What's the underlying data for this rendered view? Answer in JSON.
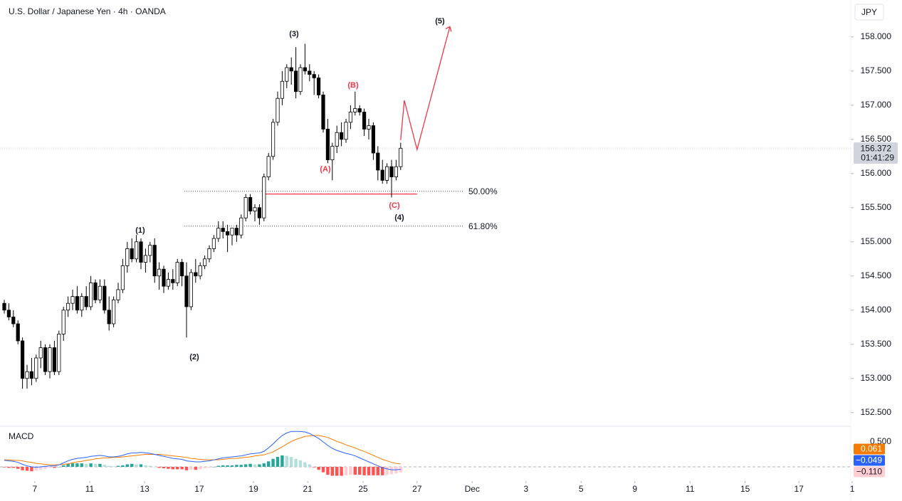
{
  "chart_data": {
    "type": "candlestick",
    "title": "U.S. Dollar / Japanese Yen · 4h · OANDA",
    "currency": "JPY",
    "ohlc": [
      [
        154.1,
        154.15,
        153.95,
        154.0
      ],
      [
        154.0,
        154.1,
        153.85,
        153.9
      ],
      [
        153.9,
        154.0,
        153.75,
        153.8
      ],
      [
        153.8,
        153.85,
        153.5,
        153.55
      ],
      [
        153.55,
        153.6,
        152.85,
        153.0
      ],
      [
        153.0,
        153.2,
        152.85,
        153.1
      ],
      [
        153.1,
        153.3,
        152.9,
        153.0
      ],
      [
        153.0,
        153.35,
        152.95,
        153.3
      ],
      [
        153.3,
        153.55,
        153.15,
        153.45
      ],
      [
        153.45,
        153.5,
        153.05,
        153.1
      ],
      [
        153.1,
        153.5,
        153.0,
        153.45
      ],
      [
        153.45,
        153.55,
        153.05,
        153.1
      ],
      [
        153.1,
        153.7,
        153.05,
        153.65
      ],
      [
        153.65,
        154.05,
        153.55,
        154.0
      ],
      [
        154.0,
        154.2,
        153.9,
        154.1
      ],
      [
        154.1,
        154.3,
        154.0,
        154.2
      ],
      [
        154.2,
        154.35,
        153.95,
        154.0
      ],
      [
        154.0,
        154.25,
        153.9,
        154.2
      ],
      [
        154.2,
        154.35,
        154.0,
        154.05
      ],
      [
        154.05,
        154.5,
        154.0,
        154.4
      ],
      [
        154.4,
        154.45,
        154.1,
        154.15
      ],
      [
        154.15,
        154.45,
        154.1,
        154.35
      ],
      [
        154.35,
        154.45,
        153.95,
        154.0
      ],
      [
        154.0,
        154.2,
        153.7,
        153.8
      ],
      [
        153.8,
        154.2,
        153.75,
        154.15
      ],
      [
        154.15,
        154.4,
        154.1,
        154.3
      ],
      [
        154.3,
        154.75,
        154.25,
        154.65
      ],
      [
        154.65,
        155.0,
        154.55,
        154.9
      ],
      [
        154.9,
        155.05,
        154.7,
        154.75
      ],
      [
        154.75,
        155.1,
        154.7,
        155.0
      ],
      [
        155.0,
        155.05,
        154.6,
        154.7
      ],
      [
        154.7,
        154.9,
        154.55,
        154.8
      ],
      [
        154.8,
        155.0,
        154.7,
        154.95
      ],
      [
        154.95,
        155.05,
        154.4,
        154.5
      ],
      [
        154.5,
        154.7,
        154.3,
        154.6
      ],
      [
        154.6,
        154.65,
        154.25,
        154.35
      ],
      [
        154.35,
        154.55,
        154.3,
        154.45
      ],
      [
        154.45,
        154.6,
        154.3,
        154.4
      ],
      [
        154.4,
        154.75,
        154.35,
        154.7
      ],
      [
        154.7,
        154.75,
        154.35,
        154.5
      ],
      [
        154.5,
        154.7,
        153.6,
        154.05
      ],
      [
        154.05,
        154.6,
        154.0,
        154.55
      ],
      [
        154.55,
        154.75,
        154.4,
        154.5
      ],
      [
        154.5,
        154.7,
        154.45,
        154.65
      ],
      [
        154.65,
        154.8,
        154.6,
        154.75
      ],
      [
        154.75,
        154.95,
        154.7,
        154.9
      ],
      [
        154.9,
        155.1,
        154.85,
        155.05
      ],
      [
        155.05,
        155.3,
        155.0,
        155.2
      ],
      [
        155.2,
        155.3,
        155.05,
        155.15
      ],
      [
        155.15,
        155.25,
        154.85,
        155.1
      ],
      [
        155.1,
        155.2,
        154.95,
        155.2
      ],
      [
        155.2,
        155.25,
        155.0,
        155.1
      ],
      [
        155.1,
        155.4,
        155.05,
        155.35
      ],
      [
        155.35,
        155.7,
        155.3,
        155.65
      ],
      [
        155.65,
        155.7,
        155.4,
        155.45
      ],
      [
        155.45,
        155.55,
        155.3,
        155.5
      ],
      [
        155.5,
        155.55,
        155.25,
        155.35
      ],
      [
        155.35,
        156.0,
        155.3,
        155.95
      ],
      [
        155.95,
        156.3,
        155.9,
        156.25
      ],
      [
        156.25,
        156.8,
        156.2,
        156.75
      ],
      [
        156.75,
        157.2,
        156.7,
        157.1
      ],
      [
        157.1,
        157.5,
        157.0,
        157.35
      ],
      [
        157.35,
        157.6,
        157.25,
        157.55
      ],
      [
        157.55,
        157.7,
        157.3,
        157.5
      ],
      [
        157.5,
        157.85,
        157.1,
        157.2
      ],
      [
        157.2,
        157.6,
        157.15,
        157.55
      ],
      [
        157.55,
        157.9,
        157.45,
        157.5
      ],
      [
        157.5,
        157.6,
        157.35,
        157.45
      ],
      [
        157.45,
        157.5,
        157.15,
        157.4
      ],
      [
        157.4,
        157.45,
        157.1,
        157.15
      ],
      [
        157.15,
        157.2,
        156.6,
        156.65
      ],
      [
        156.65,
        156.8,
        156.15,
        156.2
      ],
      [
        156.2,
        156.45,
        155.9,
        156.4
      ],
      [
        156.4,
        156.7,
        156.3,
        156.6
      ],
      [
        156.6,
        156.75,
        156.4,
        156.5
      ],
      [
        156.5,
        156.8,
        156.45,
        156.75
      ],
      [
        156.75,
        157.0,
        156.65,
        156.9
      ],
      [
        156.9,
        157.2,
        156.85,
        156.95
      ],
      [
        156.95,
        157.0,
        156.85,
        156.9
      ],
      [
        156.9,
        156.95,
        156.55,
        156.65
      ],
      [
        156.65,
        156.8,
        156.5,
        156.7
      ],
      [
        156.7,
        156.75,
        156.2,
        156.3
      ],
      [
        156.3,
        156.4,
        155.9,
        156.05
      ],
      [
        156.05,
        156.2,
        155.85,
        155.9
      ],
      [
        155.9,
        156.15,
        155.85,
        156.1
      ],
      [
        156.1,
        156.2,
        155.65,
        155.95
      ],
      [
        155.95,
        156.2,
        155.9,
        156.1
      ],
      [
        156.1,
        156.45,
        156.05,
        156.37
      ]
    ],
    "xlim": [
      0,
      185
    ],
    "xticks": [
      {
        "value": 6.7,
        "label": "7"
      },
      {
        "value": 18.75,
        "label": "11"
      },
      {
        "value": 30.8,
        "label": "13"
      },
      {
        "value": 42.8,
        "label": "17"
      },
      {
        "value": 54.7,
        "label": "19"
      },
      {
        "value": 66.6,
        "label": "21"
      },
      {
        "value": 78.75,
        "label": "25"
      },
      {
        "value": 90.6,
        "label": "27"
      },
      {
        "value": 102.7,
        "label": "Dec"
      },
      {
        "value": 114.5,
        "label": "3"
      },
      {
        "value": 126.6,
        "label": "5"
      },
      {
        "value": 138.4,
        "label": "9"
      },
      {
        "value": 150.5,
        "label": "11"
      },
      {
        "value": 162.6,
        "label": "15"
      },
      {
        "value": 174.4,
        "label": "17"
      },
      {
        "value": 186.1,
        "label": "1"
      }
    ],
    "ylim": [
      152.31,
      158.54
    ],
    "yticks": [
      {
        "value": 158,
        "label": "158.000"
      },
      {
        "value": 157.5,
        "label": "157.500"
      },
      {
        "value": 157,
        "label": "157.000"
      },
      {
        "value": 156.5,
        "label": "156.500"
      },
      {
        "value": 156,
        "label": "156.000"
      },
      {
        "value": 155.5,
        "label": "155.500"
      },
      {
        "value": 155,
        "label": "155.000"
      },
      {
        "value": 154.5,
        "label": "154.500"
      },
      {
        "value": 154,
        "label": "154.000"
      },
      {
        "value": 153.5,
        "label": "153.500"
      },
      {
        "value": 153,
        "label": "153.000"
      },
      {
        "value": 152.5,
        "label": "152.500"
      }
    ],
    "last_price": {
      "value": 156.372,
      "label": "156.372"
    },
    "countdown": "01:41:29",
    "fib_levels": [
      {
        "label": "50.00%",
        "price": 155.74
      },
      {
        "label": "61.80%",
        "price": 155.23
      }
    ],
    "support": {
      "price": 155.7,
      "x": [
        57.2,
        90.6
      ]
    },
    "projection": {
      "x": [
        87,
        87.8,
        90.6,
        97.8
      ],
      "y": [
        156.49,
        157.07,
        156.35,
        158.15
      ]
    },
    "wave_labels": [
      "(1)",
      "(2)",
      "(3)",
      "(4)",
      "(5)",
      "(A)",
      "(B)",
      "(C)"
    ],
    "macd": {
      "title": "MACD",
      "ylim": [
        -0.229,
        0.8
      ],
      "yticks": [
        {
          "value": 0.5,
          "label": "0.500"
        }
      ],
      "signal": {
        "color": "#f57c00",
        "last_label": "0.061",
        "values": [
          0.14,
          0.14,
          0.13,
          0.13,
          0.12,
          0.1,
          0.09,
          0.07,
          0.06,
          0.05,
          0.04,
          0.04,
          0.04,
          0.05,
          0.06,
          0.08,
          0.1,
          0.11,
          0.13,
          0.14,
          0.16,
          0.17,
          0.18,
          0.18,
          0.19,
          0.19,
          0.2,
          0.21,
          0.22,
          0.23,
          0.24,
          0.25,
          0.25,
          0.25,
          0.25,
          0.24,
          0.23,
          0.22,
          0.21,
          0.2,
          0.19,
          0.17,
          0.16,
          0.15,
          0.14,
          0.14,
          0.14,
          0.14,
          0.15,
          0.16,
          0.17,
          0.17,
          0.18,
          0.19,
          0.2,
          0.22,
          0.23,
          0.24,
          0.27,
          0.3,
          0.35,
          0.4,
          0.46,
          0.51,
          0.55,
          0.58,
          0.61,
          0.62,
          0.63,
          0.63,
          0.61,
          0.59,
          0.55,
          0.51,
          0.48,
          0.44,
          0.41,
          0.38,
          0.34,
          0.31,
          0.27,
          0.23,
          0.19,
          0.15,
          0.12,
          0.09,
          0.07,
          0.06
        ]
      },
      "macd": {
        "color": "#2962ff",
        "last_label": "−0.049",
        "values": [
          0.13,
          0.12,
          0.11,
          0.09,
          0.05,
          0.02,
          0.0,
          -0.01,
          0.0,
          0.01,
          0.02,
          0.02,
          0.04,
          0.08,
          0.12,
          0.15,
          0.17,
          0.18,
          0.19,
          0.21,
          0.22,
          0.23,
          0.22,
          0.2,
          0.2,
          0.21,
          0.23,
          0.26,
          0.28,
          0.28,
          0.29,
          0.28,
          0.27,
          0.25,
          0.23,
          0.21,
          0.19,
          0.17,
          0.16,
          0.15,
          0.12,
          0.11,
          0.1,
          0.1,
          0.11,
          0.12,
          0.14,
          0.16,
          0.18,
          0.19,
          0.2,
          0.21,
          0.22,
          0.24,
          0.26,
          0.27,
          0.28,
          0.31,
          0.38,
          0.46,
          0.55,
          0.63,
          0.68,
          0.71,
          0.71,
          0.71,
          0.7,
          0.67,
          0.62,
          0.57,
          0.5,
          0.43,
          0.37,
          0.33,
          0.3,
          0.27,
          0.25,
          0.22,
          0.18,
          0.14,
          0.1,
          0.06,
          0.02,
          -0.02,
          -0.04,
          -0.06,
          -0.06,
          -0.05
        ]
      },
      "histogram": {
        "last_label": "−0.110",
        "values": [
          -0.01,
          -0.02,
          -0.02,
          -0.04,
          -0.07,
          -0.08,
          -0.09,
          -0.08,
          -0.06,
          -0.04,
          -0.02,
          -0.02,
          0.0,
          0.03,
          0.06,
          0.07,
          0.07,
          0.07,
          0.06,
          0.07,
          0.06,
          0.06,
          0.04,
          0.02,
          0.01,
          0.02,
          0.03,
          0.05,
          0.06,
          0.05,
          0.05,
          0.03,
          0.02,
          0.0,
          -0.02,
          -0.03,
          -0.04,
          -0.05,
          -0.05,
          -0.05,
          -0.07,
          -0.06,
          -0.06,
          -0.05,
          -0.03,
          -0.02,
          0.0,
          0.02,
          0.03,
          0.03,
          0.03,
          0.04,
          0.04,
          0.05,
          0.06,
          0.05,
          0.05,
          0.07,
          0.11,
          0.16,
          0.2,
          0.23,
          0.22,
          0.2,
          0.16,
          0.13,
          0.09,
          0.05,
          -0.01,
          -0.06,
          -0.11,
          -0.16,
          -0.18,
          -0.18,
          -0.18,
          -0.17,
          -0.16,
          -0.16,
          -0.16,
          -0.17,
          -0.17,
          -0.17,
          -0.17,
          -0.17,
          -0.16,
          -0.15,
          -0.13,
          -0.11
        ]
      }
    }
  }
}
